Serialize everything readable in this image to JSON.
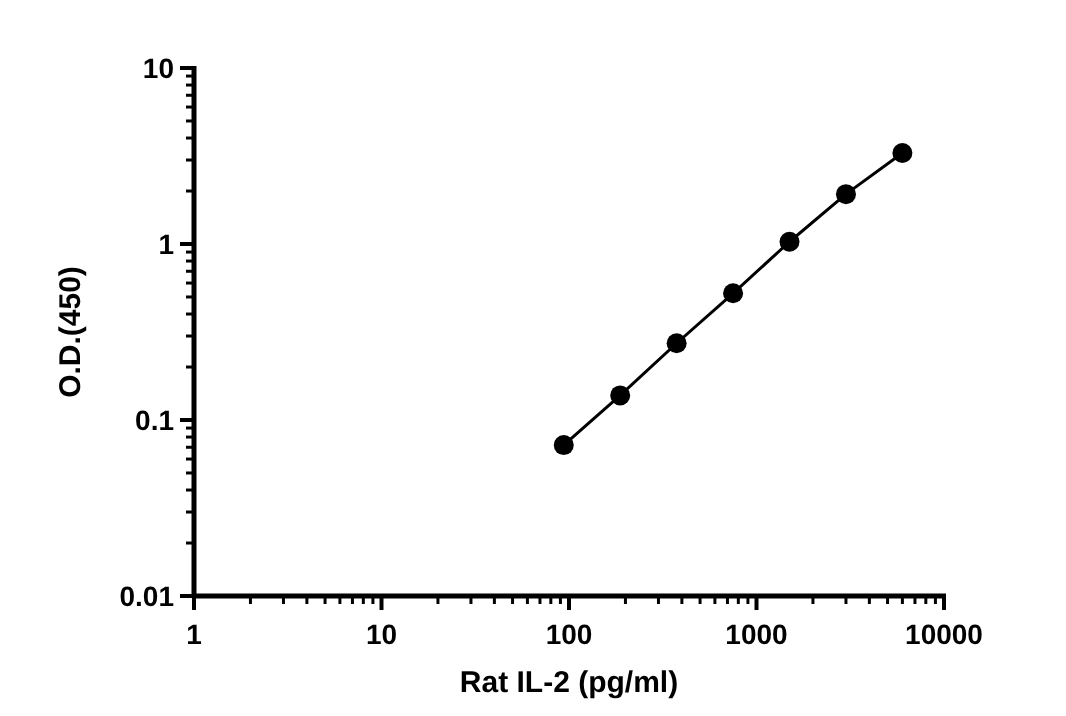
{
  "chart_data": {
    "type": "line",
    "xlabel": "Rat IL-2 (pg/ml)",
    "ylabel": "O.D.(450)",
    "log": "xy",
    "marker": "circle",
    "line_style": "solid",
    "xlim": [
      1,
      10000
    ],
    "ylim": [
      0.01,
      10
    ],
    "xticks": [
      1,
      {
        "value": 2,
        "label": null
      },
      {
        "value": 3,
        "label": null
      },
      {
        "value": 4,
        "label": null
      },
      {
        "value": 5,
        "label": null
      },
      {
        "value": 6,
        "label": null
      },
      {
        "value": 7,
        "label": null
      },
      {
        "value": 8,
        "label": null
      },
      {
        "value": 9,
        "label": null
      },
      10,
      {
        "value": 20,
        "label": null
      },
      {
        "value": 30,
        "label": null
      },
      {
        "value": 40,
        "label": null
      },
      {
        "value": 50,
        "label": null
      },
      {
        "value": 60,
        "label": null
      },
      {
        "value": 70,
        "label": null
      },
      {
        "value": 80,
        "label": null
      },
      {
        "value": 90,
        "label": null
      },
      100,
      {
        "value": 200,
        "label": null
      },
      {
        "value": 300,
        "label": null
      },
      {
        "value": 400,
        "label": null
      },
      {
        "value": 500,
        "label": null
      },
      {
        "value": 600,
        "label": null
      },
      {
        "value": 700,
        "label": null
      },
      {
        "value": 800,
        "label": null
      },
      {
        "value": 900,
        "label": null
      },
      1000,
      {
        "value": 2000,
        "label": null
      },
      {
        "value": 3000,
        "label": null
      },
      {
        "value": 4000,
        "label": null
      },
      {
        "value": 5000,
        "label": null
      },
      {
        "value": 6000,
        "label": null
      },
      {
        "value": 7000,
        "label": null
      },
      {
        "value": 8000,
        "label": null
      },
      {
        "value": 9000,
        "label": null
      },
      10000
    ],
    "yticks": [
      0.01,
      {
        "value": 0.02,
        "label": null
      },
      {
        "value": 0.03,
        "label": null
      },
      {
        "value": 0.04,
        "label": null
      },
      {
        "value": 0.05,
        "label": null
      },
      {
        "value": 0.06,
        "label": null
      },
      {
        "value": 0.07,
        "label": null
      },
      {
        "value": 0.08,
        "label": null
      },
      {
        "value": 0.09,
        "label": null
      },
      0.1,
      {
        "value": 0.2,
        "label": null
      },
      {
        "value": 0.3,
        "label": null
      },
      {
        "value": 0.4,
        "label": null
      },
      {
        "value": 0.5,
        "label": null
      },
      {
        "value": 0.6,
        "label": null
      },
      {
        "value": 0.7,
        "label": null
      },
      {
        "value": 0.8,
        "label": null
      },
      {
        "value": 0.9,
        "label": null
      },
      1,
      {
        "value": 2,
        "label": null
      },
      {
        "value": 3,
        "label": null
      },
      {
        "value": 4,
        "label": null
      },
      {
        "value": 5,
        "label": null
      },
      {
        "value": 6,
        "label": null
      },
      {
        "value": 7,
        "label": null
      },
      {
        "value": 8,
        "label": null
      },
      {
        "value": 9,
        "label": null
      },
      10
    ],
    "x": [
      93.75,
      187.5,
      375,
      750,
      1500,
      3000,
      6000
    ],
    "series": [
      {
        "color": "#000000",
        "values": [
          0.072,
          0.138,
          0.273,
          0.525,
          1.03,
          1.92,
          3.29
        ]
      }
    ]
  }
}
